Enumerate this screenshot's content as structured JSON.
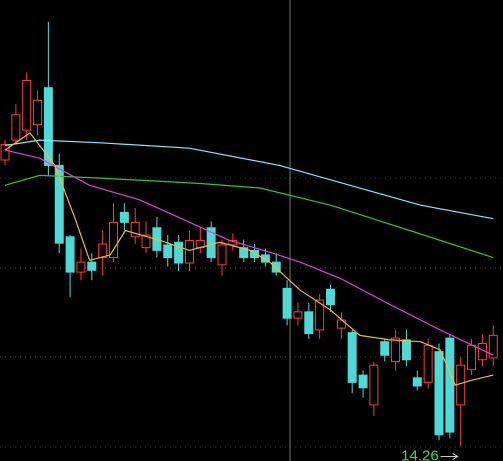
{
  "chart_data": {
    "type": "candlestick",
    "ylim": [
      14.1,
      19.2
    ],
    "up_color": "#ff3b3b",
    "down_color": "#4fd8d8",
    "open": [
      17.43,
      17.65,
      17.76,
      17.82,
      18.23,
      17.37,
      16.58,
      16.19,
      16.3,
      16.35,
      16.35,
      16.85,
      16.58,
      16.46,
      16.68,
      16.49,
      16.52,
      16.29,
      16.46,
      16.68,
      16.27,
      16.49,
      16.46,
      16.43,
      16.38,
      16.3,
      16.01,
      15.68,
      15.75,
      15.55,
      16.0,
      15.57,
      15.52,
      15.05,
      14.72,
      15.42,
      15.2,
      15.44,
      15.02,
      14.97,
      15.31,
      15.46,
      14.72,
      15.11,
      15.22,
      15.24
    ],
    "high": [
      17.65,
      18.05,
      18.4,
      18.2,
      18.96,
      17.5,
      16.6,
      16.45,
      16.4,
      16.65,
      16.95,
      16.95,
      16.9,
      16.75,
      16.8,
      16.6,
      16.6,
      16.65,
      16.68,
      16.75,
      16.55,
      16.62,
      16.55,
      16.5,
      16.45,
      16.4,
      16.1,
      15.85,
      15.85,
      15.95,
      16.05,
      15.75,
      15.55,
      15.1,
      15.2,
      15.45,
      15.55,
      15.55,
      15.1,
      15.45,
      15.4,
      15.5,
      15.25,
      15.45,
      15.5,
      15.6
    ],
    "low": [
      17.37,
      17.6,
      17.65,
      17.7,
      17.25,
      16.4,
      15.91,
      16.1,
      16.1,
      16.15,
      16.3,
      16.65,
      16.5,
      16.4,
      16.35,
      16.25,
      16.2,
      16.2,
      16.4,
      16.3,
      16.15,
      16.43,
      16.3,
      16.3,
      16.25,
      16.15,
      15.6,
      15.6,
      15.45,
      15.45,
      15.75,
      15.45,
      14.85,
      14.8,
      14.6,
      15.2,
      15.1,
      15.15,
      14.88,
      14.9,
      14.33,
      14.35,
      14.26,
      15.05,
      15.15,
      15.15
    ],
    "close": [
      17.6,
      17.93,
      18.31,
      18.09,
      17.37,
      16.51,
      16.19,
      16.3,
      16.21,
      16.5,
      16.74,
      16.74,
      16.74,
      16.6,
      16.43,
      16.35,
      16.29,
      16.54,
      16.54,
      16.35,
      16.49,
      16.54,
      16.35,
      16.35,
      16.3,
      16.19,
      15.68,
      15.75,
      15.51,
      15.88,
      15.83,
      15.66,
      14.97,
      14.91,
      15.16,
      15.27,
      15.46,
      15.22,
      14.93,
      15.38,
      14.39,
      14.42,
      15.16,
      15.38,
      15.4,
      15.49
    ],
    "series": [
      {
        "color": "#7fe8ff",
        "x": [
          0,
          3.2,
          8.8,
          17,
          25.3,
          31.8,
          38.3,
          45
        ],
        "values": [
          17.59,
          17.65,
          17.62,
          17.56,
          17.37,
          17.15,
          16.93,
          16.78
        ]
      },
      {
        "color": "#3cbf3c",
        "x": [
          0,
          3.2,
          8.8,
          18,
          23.5,
          30,
          37.3,
          45
        ],
        "values": [
          17.15,
          17.26,
          17.23,
          17.17,
          17.12,
          16.93,
          16.65,
          16.35
        ]
      },
      {
        "color": "#e040e0",
        "x": [
          0,
          3.2,
          7.8,
          12.4,
          16.1,
          20.7,
          24.4,
          27.2,
          30.9,
          35.5,
          40.1,
          45
        ],
        "values": [
          17.54,
          17.45,
          17.15,
          16.99,
          16.79,
          16.54,
          16.41,
          16.3,
          16.12,
          15.83,
          15.55,
          15.27
        ]
      },
      {
        "color": "#f0c020",
        "x": [
          0,
          2.3,
          4.6,
          6.5,
          7.8,
          9.7,
          11.1,
          14.3,
          17,
          19.8,
          22.6,
          24.4,
          27.2,
          30,
          32.7,
          35.5,
          38.3,
          40.1,
          41.5,
          42.9,
          45
        ],
        "values": [
          17.54,
          17.73,
          17.37,
          16.77,
          16.32,
          16.38,
          16.65,
          16.54,
          16.43,
          16.52,
          16.43,
          16.3,
          15.99,
          15.77,
          15.49,
          15.44,
          15.42,
          15.33,
          14.94,
          14.99,
          15.05
        ]
      }
    ],
    "annotation": "14.26"
  }
}
